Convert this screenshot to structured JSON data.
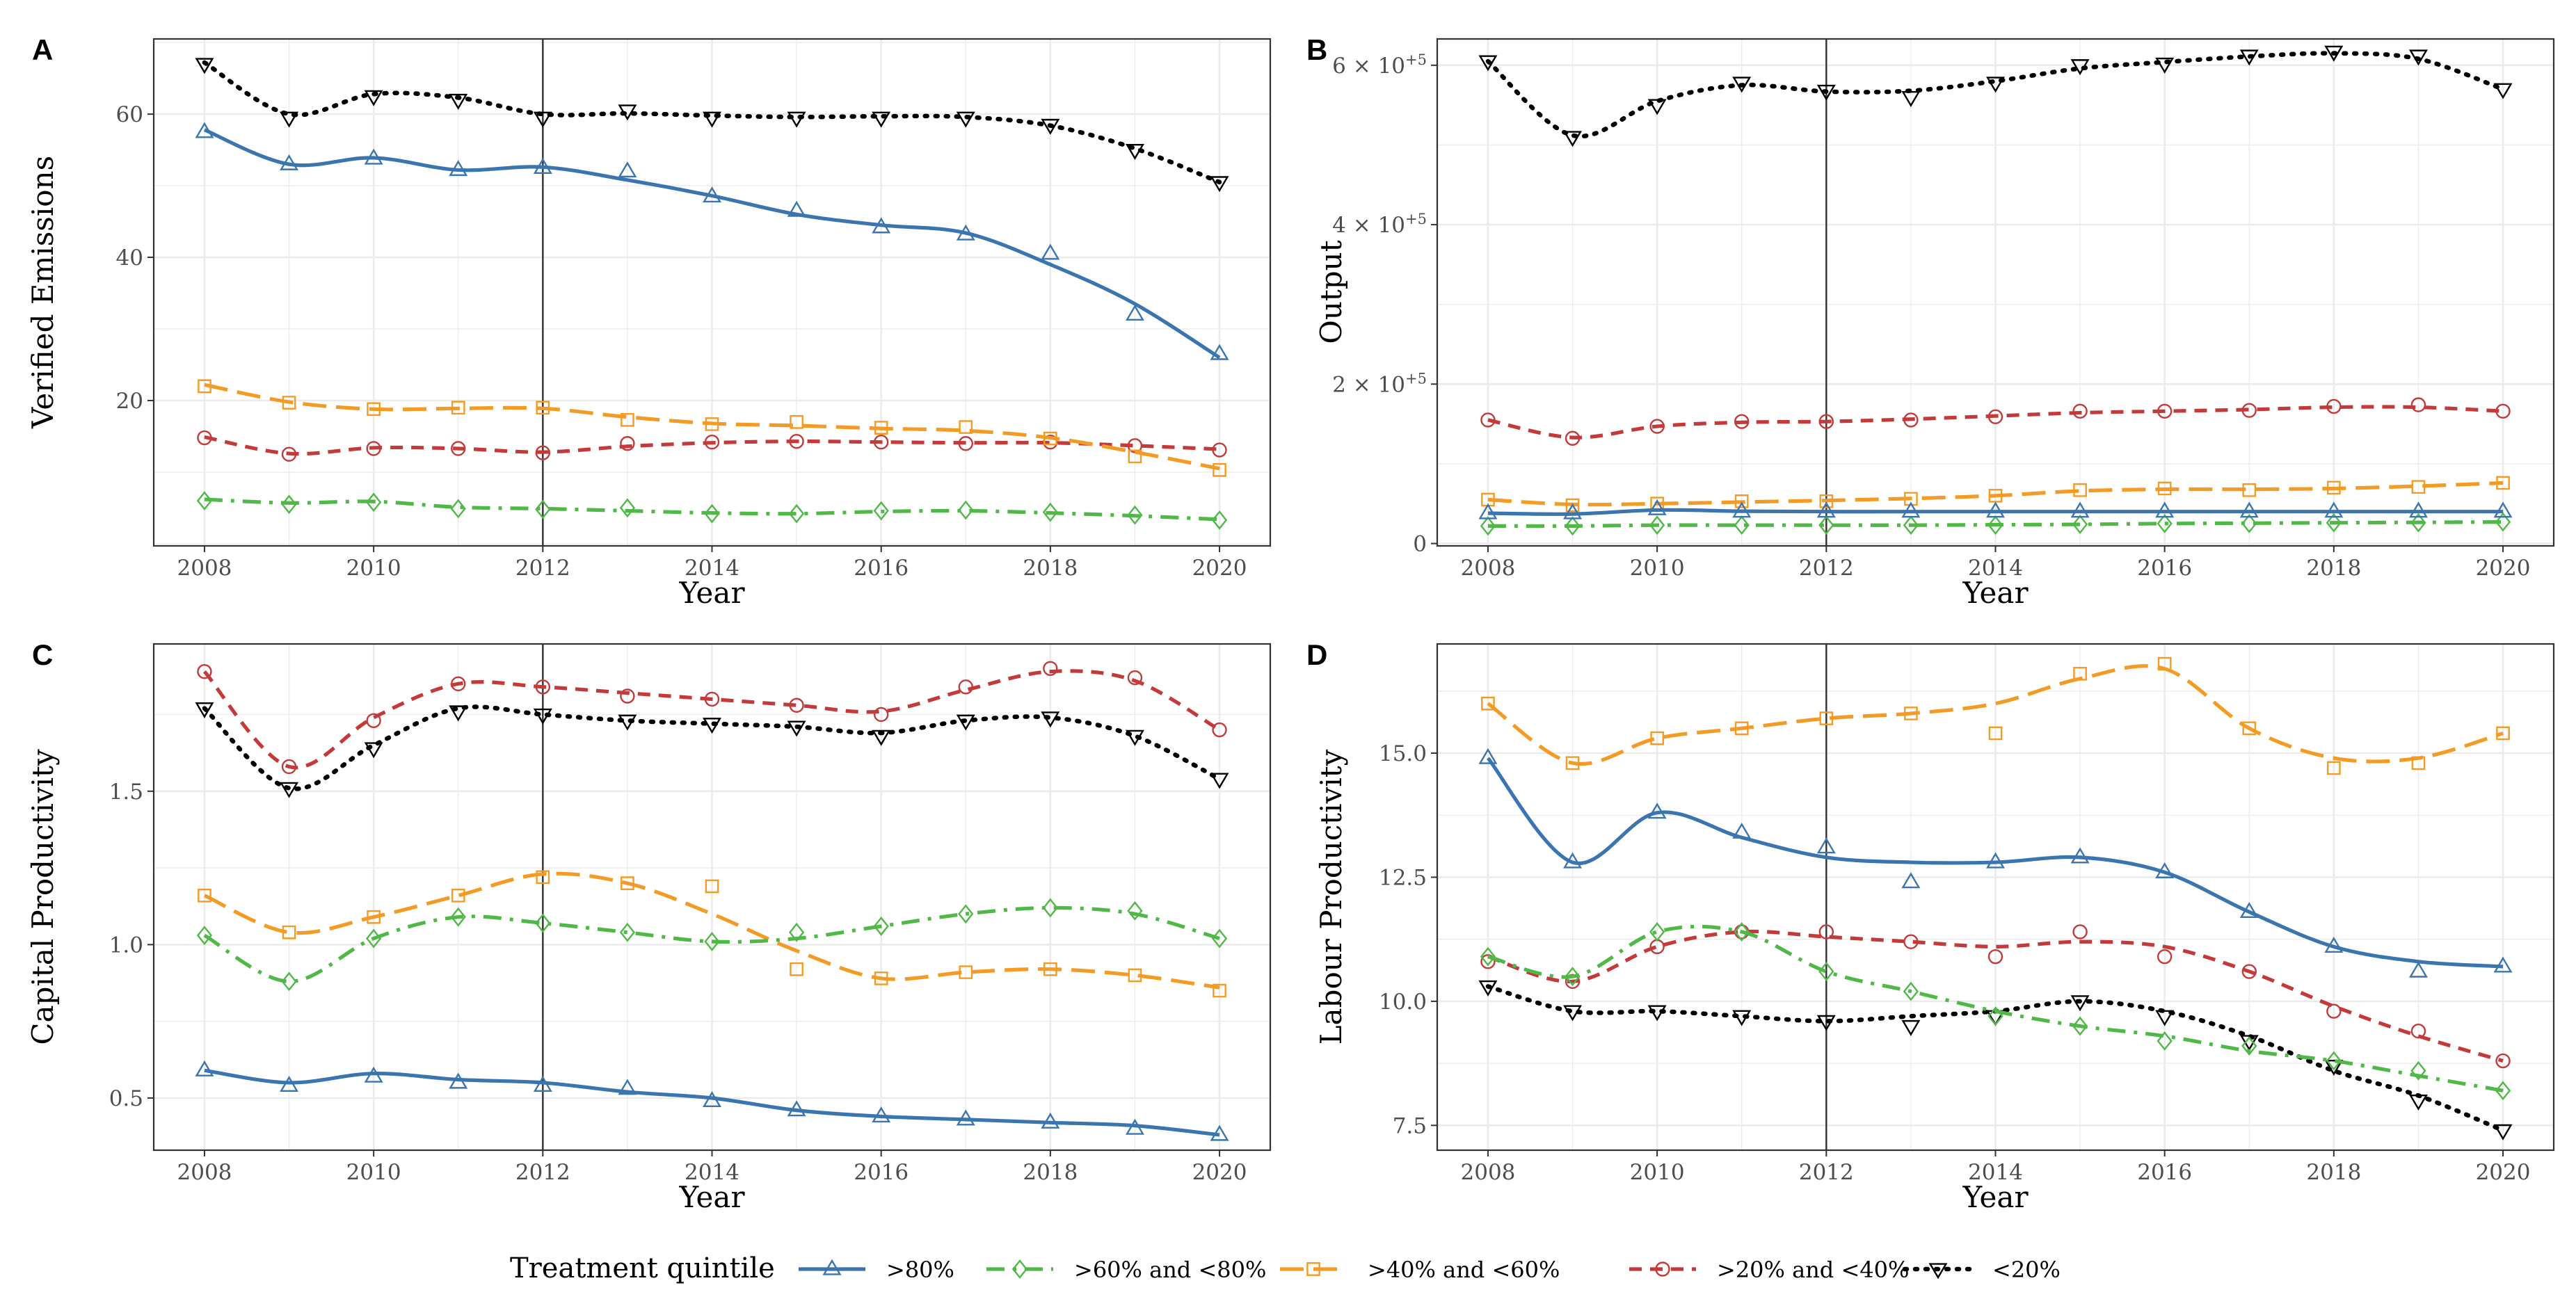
{
  "colors": {
    "q80": "#3b75af",
    "q60": "#4fb847",
    "q40": "#f39b24",
    "q20": "#c43a3a",
    "q0": "#000000",
    "grid": "#ebebeb",
    "axis": "#333333"
  },
  "legend": {
    "title": "Treatment quintile",
    "entries": [
      {
        "key": "q80",
        "label": ">80%",
        "shape": "triangle-up",
        "dash": "solid"
      },
      {
        "key": "q60",
        "label": ">60% and <80%",
        "shape": "diamond",
        "dash": "dashdot"
      },
      {
        "key": "q40",
        "label": ">40% and <60%",
        "shape": "square",
        "dash": "longdash"
      },
      {
        "key": "q20",
        "label": ">20% and <40%",
        "shape": "circle",
        "dash": "dashed"
      },
      {
        "key": "q0",
        "label": "<20%",
        "shape": "triangle-down",
        "dash": "dotted"
      }
    ]
  },
  "chart_data": [
    {
      "panel": "A",
      "type": "line",
      "xlabel": "Year",
      "ylabel": "Verified Emissions",
      "xlim": [
        2007.4,
        2020.6
      ],
      "ylim": [
        -0.3,
        70.5
      ],
      "xticks": [
        2008,
        2010,
        2012,
        2014,
        2016,
        2018,
        2020
      ],
      "yticks": [
        {
          "v": 20,
          "t": "20"
        },
        {
          "v": 40,
          "t": "40"
        },
        {
          "v": 60,
          "t": "60"
        }
      ],
      "vline": 2012,
      "x": [
        2008,
        2009,
        2010,
        2011,
        2012,
        2013,
        2014,
        2015,
        2016,
        2017,
        2018,
        2019,
        2020
      ],
      "series": [
        {
          "key": "q80",
          "name": ">80%",
          "values": [
            57.5,
            53.0,
            53.8,
            52.2,
            52.5,
            52.0,
            48.5,
            46.5,
            44.2,
            43.2,
            40.5,
            32.0,
            26.5
          ],
          "smooth": [
            57.8,
            53.0,
            53.9,
            52.2,
            52.6,
            50.8,
            48.6,
            46.0,
            44.5,
            43.4,
            39.0,
            33.5,
            26.0
          ]
        },
        {
          "key": "q60",
          "name": ">60% and <80%",
          "values": [
            6.0,
            5.5,
            5.8,
            4.9,
            4.8,
            5.0,
            4.2,
            4.2,
            4.6,
            4.7,
            4.4,
            4.0,
            3.3
          ],
          "smooth": [
            6.2,
            5.7,
            5.9,
            5.1,
            4.9,
            4.6,
            4.3,
            4.2,
            4.5,
            4.6,
            4.3,
            3.9,
            3.4
          ]
        },
        {
          "key": "q40",
          "name": ">40% and <60%",
          "values": [
            22.0,
            19.7,
            18.8,
            19.0,
            19.0,
            17.3,
            16.7,
            17.0,
            16.2,
            16.3,
            14.7,
            12.2,
            10.3
          ],
          "smooth": [
            22.2,
            19.8,
            18.8,
            18.9,
            18.9,
            17.7,
            16.8,
            16.5,
            16.1,
            15.8,
            14.8,
            12.8,
            10.5
          ]
        },
        {
          "key": "q20",
          "name": ">20% and <40%",
          "values": [
            14.8,
            12.5,
            13.3,
            13.3,
            12.7,
            14.0,
            14.2,
            14.3,
            14.2,
            14.0,
            14.2,
            13.7,
            13.1
          ],
          "smooth": [
            14.9,
            12.6,
            13.4,
            13.3,
            12.8,
            13.6,
            14.1,
            14.3,
            14.2,
            14.1,
            14.1,
            13.7,
            13.2
          ]
        },
        {
          "key": "q0",
          "name": "<20%",
          "values": [
            67.0,
            59.5,
            62.5,
            62.0,
            59.5,
            60.5,
            59.5,
            59.5,
            59.5,
            59.5,
            58.5,
            55.0,
            50.5
          ],
          "smooth": [
            67.2,
            60.0,
            62.8,
            62.3,
            60.0,
            60.1,
            59.8,
            59.6,
            59.7,
            59.6,
            58.4,
            55.2,
            50.5
          ]
        }
      ]
    },
    {
      "panel": "B",
      "type": "line",
      "xlabel": "Year",
      "ylabel": "Output",
      "xlim": [
        2007.4,
        2020.6
      ],
      "ylim": [
        -3000,
        633000
      ],
      "xticks": [
        2008,
        2010,
        2012,
        2014,
        2016,
        2018,
        2020
      ],
      "yticks": [
        {
          "v": 0,
          "t": "0"
        },
        {
          "v": 200000,
          "t": "2 × 10",
          "exp": "+5"
        },
        {
          "v": 400000,
          "t": "4 × 10",
          "exp": "+5"
        },
        {
          "v": 600000,
          "t": "6 × 10",
          "exp": "+5"
        }
      ],
      "vline": 2012,
      "x": [
        2008,
        2009,
        2010,
        2011,
        2012,
        2013,
        2014,
        2015,
        2016,
        2017,
        2018,
        2019,
        2020
      ],
      "series": [
        {
          "key": "q80",
          "name": ">80%",
          "values": [
            38000,
            38000,
            43000,
            40000,
            40000,
            40000,
            40000,
            40000,
            40000,
            40000,
            40000,
            40000,
            40000
          ],
          "smooth": [
            38000,
            37000,
            42000,
            40500,
            40000,
            40000,
            40000,
            40000,
            40000,
            40000,
            40000,
            40000,
            40000
          ]
        },
        {
          "key": "q60",
          "name": ">60% and <80%",
          "values": [
            22000,
            22000,
            23000,
            23000,
            23000,
            23000,
            23000,
            24000,
            25000,
            25000,
            26000,
            26000,
            27000
          ],
          "smooth": [
            22000,
            22000,
            23000,
            23000,
            23000,
            23000,
            23500,
            24000,
            25000,
            25500,
            26000,
            26500,
            27000
          ]
        },
        {
          "key": "q40",
          "name": ">40% and <60%",
          "values": [
            55000,
            48000,
            50000,
            53000,
            53000,
            56000,
            60000,
            67000,
            69000,
            67000,
            70000,
            71000,
            76000
          ],
          "smooth": [
            55000,
            49000,
            50000,
            52000,
            54000,
            56500,
            60000,
            66000,
            68000,
            68000,
            69000,
            72000,
            76000
          ]
        },
        {
          "key": "q20",
          "name": ">20% and <40%",
          "values": [
            155000,
            132000,
            147000,
            153000,
            153000,
            155000,
            159000,
            166000,
            166000,
            167000,
            172000,
            174000,
            166000
          ],
          "smooth": [
            155000,
            133000,
            147000,
            152000,
            153000,
            156000,
            160000,
            164000,
            166000,
            168000,
            171000,
            171000,
            166000
          ]
        },
        {
          "key": "q0",
          "name": "<20%",
          "values": [
            605000,
            510000,
            550000,
            578000,
            568000,
            560000,
            578000,
            600000,
            602000,
            612000,
            617000,
            612000,
            570000
          ],
          "smooth": [
            605000,
            512000,
            555000,
            575000,
            567000,
            568000,
            580000,
            596000,
            604000,
            611000,
            615000,
            608000,
            570000
          ]
        }
      ]
    },
    {
      "panel": "C",
      "type": "line",
      "xlabel": "Year",
      "ylabel": "Capital Productivity",
      "xlim": [
        2007.4,
        2020.6
      ],
      "ylim": [
        0.33,
        1.98
      ],
      "xticks": [
        2008,
        2010,
        2012,
        2014,
        2016,
        2018,
        2020
      ],
      "yticks": [
        {
          "v": 0.5,
          "t": "0.5"
        },
        {
          "v": 1.0,
          "t": "1.0"
        },
        {
          "v": 1.5,
          "t": "1.5"
        }
      ],
      "vline": 2012,
      "x": [
        2008,
        2009,
        2010,
        2011,
        2012,
        2013,
        2014,
        2015,
        2016,
        2017,
        2018,
        2019,
        2020
      ],
      "series": [
        {
          "key": "q80",
          "name": ">80%",
          "values": [
            0.59,
            0.54,
            0.57,
            0.55,
            0.54,
            0.53,
            0.49,
            0.46,
            0.44,
            0.43,
            0.42,
            0.4,
            0.38
          ],
          "smooth": [
            0.59,
            0.55,
            0.58,
            0.56,
            0.55,
            0.52,
            0.5,
            0.46,
            0.44,
            0.43,
            0.42,
            0.41,
            0.38
          ]
        },
        {
          "key": "q60",
          "name": ">60% and <80%",
          "values": [
            1.03,
            0.88,
            1.02,
            1.09,
            1.07,
            1.04,
            1.01,
            1.04,
            1.06,
            1.1,
            1.12,
            1.11,
            1.02
          ],
          "smooth": [
            1.03,
            0.88,
            1.02,
            1.09,
            1.07,
            1.04,
            1.01,
            1.02,
            1.06,
            1.1,
            1.12,
            1.1,
            1.02
          ]
        },
        {
          "key": "q40",
          "name": ">40% and <60%",
          "values": [
            1.16,
            1.04,
            1.09,
            1.16,
            1.22,
            1.2,
            1.19,
            0.92,
            0.89,
            0.91,
            0.92,
            0.9,
            0.85
          ],
          "smooth": [
            1.16,
            1.04,
            1.09,
            1.16,
            1.23,
            1.2,
            1.1,
            0.98,
            0.89,
            0.91,
            0.92,
            0.9,
            0.86
          ]
        },
        {
          "key": "q20",
          "name": ">20% and <40%",
          "values": [
            1.89,
            1.58,
            1.73,
            1.85,
            1.84,
            1.81,
            1.8,
            1.78,
            1.75,
            1.84,
            1.9,
            1.87,
            1.7
          ],
          "smooth": [
            1.89,
            1.58,
            1.74,
            1.85,
            1.84,
            1.82,
            1.8,
            1.78,
            1.76,
            1.83,
            1.89,
            1.86,
            1.7
          ]
        },
        {
          "key": "q0",
          "name": "<20%",
          "values": [
            1.77,
            1.51,
            1.64,
            1.76,
            1.75,
            1.73,
            1.72,
            1.71,
            1.68,
            1.73,
            1.74,
            1.68,
            1.54
          ],
          "smooth": [
            1.77,
            1.51,
            1.65,
            1.77,
            1.75,
            1.73,
            1.72,
            1.71,
            1.69,
            1.73,
            1.74,
            1.68,
            1.54
          ]
        }
      ]
    },
    {
      "panel": "D",
      "type": "line",
      "xlabel": "Year",
      "ylabel": "Labour Productivity",
      "xlim": [
        2007.4,
        2020.6
      ],
      "ylim": [
        7.0,
        17.2
      ],
      "xticks": [
        2008,
        2010,
        2012,
        2014,
        2016,
        2018,
        2020
      ],
      "yticks": [
        {
          "v": 7.5,
          "t": "7.5"
        },
        {
          "v": 10.0,
          "t": "10.0"
        },
        {
          "v": 12.5,
          "t": "12.5"
        },
        {
          "v": 15.0,
          "t": "15.0"
        }
      ],
      "vline": 2012,
      "x": [
        2008,
        2009,
        2010,
        2011,
        2012,
        2013,
        2014,
        2015,
        2016,
        2017,
        2018,
        2019,
        2020
      ],
      "series": [
        {
          "key": "q80",
          "name": ">80%",
          "values": [
            14.9,
            12.8,
            13.8,
            13.4,
            13.1,
            12.4,
            12.8,
            12.9,
            12.6,
            11.8,
            11.1,
            10.6,
            10.7
          ],
          "smooth": [
            14.9,
            12.8,
            13.8,
            13.3,
            12.9,
            12.8,
            12.8,
            12.9,
            12.6,
            11.8,
            11.1,
            10.8,
            10.7
          ]
        },
        {
          "key": "q60",
          "name": ">60% and <80%",
          "values": [
            10.9,
            10.5,
            11.4,
            11.4,
            10.6,
            10.2,
            9.7,
            9.5,
            9.2,
            9.1,
            8.8,
            8.6,
            8.2
          ],
          "smooth": [
            10.9,
            10.5,
            11.4,
            11.4,
            10.6,
            10.2,
            9.8,
            9.5,
            9.3,
            9.0,
            8.8,
            8.5,
            8.2
          ]
        },
        {
          "key": "q40",
          "name": ">40% and <60%",
          "values": [
            16.0,
            14.8,
            15.3,
            15.5,
            15.7,
            15.8,
            15.4,
            16.6,
            16.8,
            15.5,
            14.7,
            14.8,
            15.4
          ],
          "smooth": [
            16.0,
            14.8,
            15.3,
            15.5,
            15.7,
            15.8,
            16.0,
            16.5,
            16.7,
            15.5,
            14.9,
            14.9,
            15.4
          ]
        },
        {
          "key": "q20",
          "name": ">20% and <40%",
          "values": [
            10.8,
            10.4,
            11.1,
            11.4,
            11.4,
            11.2,
            10.9,
            11.4,
            10.9,
            10.6,
            9.8,
            9.4,
            8.8
          ],
          "smooth": [
            10.9,
            10.4,
            11.1,
            11.4,
            11.3,
            11.2,
            11.1,
            11.2,
            11.1,
            10.6,
            9.9,
            9.3,
            8.8
          ]
        },
        {
          "key": "q0",
          "name": "<20%",
          "values": [
            10.3,
            9.8,
            9.8,
            9.7,
            9.6,
            9.5,
            9.7,
            10.0,
            9.7,
            9.2,
            8.7,
            8.0,
            7.4
          ],
          "smooth": [
            10.3,
            9.8,
            9.8,
            9.7,
            9.6,
            9.7,
            9.8,
            10.0,
            9.8,
            9.3,
            8.6,
            8.1,
            7.4
          ]
        }
      ]
    }
  ]
}
